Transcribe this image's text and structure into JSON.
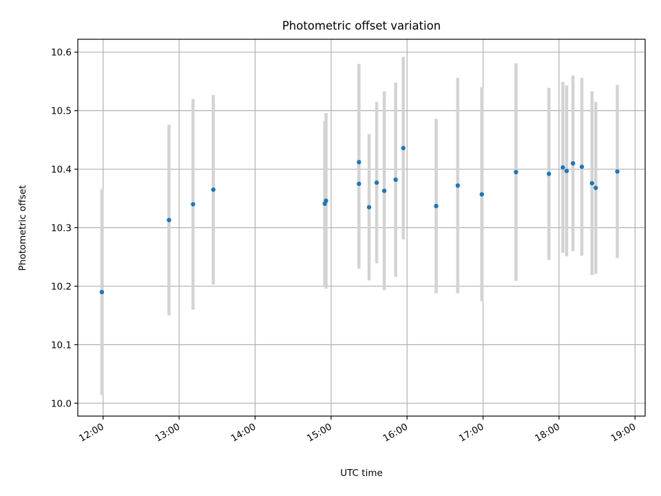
{
  "chart_data": {
    "type": "scatter",
    "title": "Photometric offset variation",
    "xlabel": "UTC time",
    "ylabel": "Photometric offset",
    "xlim": [
      "11:40",
      "19:08"
    ],
    "ylim": [
      9.978,
      10.622
    ],
    "x_ticks": [
      "12:00",
      "13:00",
      "14:00",
      "15:00",
      "16:00",
      "17:00",
      "18:00",
      "19:00"
    ],
    "y_ticks": [
      "10.0",
      "10.1",
      "10.2",
      "10.3",
      "10.4",
      "10.5",
      "10.6"
    ],
    "grid": true,
    "legend": "none",
    "colors": {
      "points": "#1f77b4",
      "errorbars": "#d3d3d3",
      "grid": "#b0b0b0"
    },
    "points": [
      {
        "time": "11:59",
        "y": 10.19,
        "err": 0.176
      },
      {
        "time": "12:52",
        "y": 10.313,
        "err": 0.163
      },
      {
        "time": "13:11",
        "y": 10.34,
        "err": 0.18
      },
      {
        "time": "13:27",
        "y": 10.365,
        "err": 0.162
      },
      {
        "time": "14:55",
        "y": 10.341,
        "err": 0.141
      },
      {
        "time": "14:56",
        "y": 10.346,
        "err": 0.15
      },
      {
        "time": "15:22",
        "y": 10.375,
        "err": 0.145
      },
      {
        "time": "15:22",
        "y": 10.412,
        "err": 0.168
      },
      {
        "time": "15:30",
        "y": 10.335,
        "err": 0.125
      },
      {
        "time": "15:36",
        "y": 10.377,
        "err": 0.138
      },
      {
        "time": "15:42",
        "y": 10.363,
        "err": 0.17
      },
      {
        "time": "15:51",
        "y": 10.382,
        "err": 0.166
      },
      {
        "time": "15:57",
        "y": 10.436,
        "err": 0.156
      },
      {
        "time": "16:23",
        "y": 10.337,
        "err": 0.149
      },
      {
        "time": "16:40",
        "y": 10.372,
        "err": 0.184
      },
      {
        "time": "16:59",
        "y": 10.357,
        "err": 0.183
      },
      {
        "time": "17:26",
        "y": 10.395,
        "err": 0.186
      },
      {
        "time": "17:52",
        "y": 10.392,
        "err": 0.147
      },
      {
        "time": "18:03",
        "y": 10.403,
        "err": 0.146
      },
      {
        "time": "18:06",
        "y": 10.397,
        "err": 0.146
      },
      {
        "time": "18:11",
        "y": 10.41,
        "err": 0.15
      },
      {
        "time": "18:18",
        "y": 10.404,
        "err": 0.152
      },
      {
        "time": "18:26",
        "y": 10.376,
        "err": 0.157
      },
      {
        "time": "18:29",
        "y": 10.368,
        "err": 0.147
      },
      {
        "time": "18:46",
        "y": 10.396,
        "err": 0.148
      }
    ]
  }
}
